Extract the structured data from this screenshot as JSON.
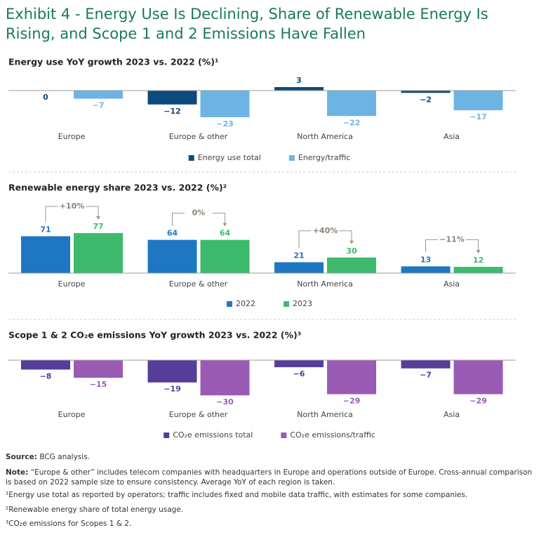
{
  "title": "Exhibit 4 - Energy Use Is Declining, Share of Renewable Energy Is Rising, and Scope 1 and 2 Emissions Have Fallen",
  "chart_data": [
    {
      "type": "bar",
      "title": "Energy use YoY growth 2023 vs. 2022 (%)¹",
      "categories": [
        "Europe",
        "Europe & other",
        "North America",
        "Asia"
      ],
      "series": [
        {
          "name": "Energy use total",
          "color": "#0e4a7b",
          "values": [
            0,
            -12,
            3,
            -2
          ],
          "value_labels": [
            "0",
            "−12",
            "3",
            "−2"
          ]
        },
        {
          "name": "Energy/traffic",
          "color": "#6db4e5",
          "values": [
            -7,
            -23,
            -22,
            -17
          ],
          "value_labels": [
            "−7",
            "−23",
            "−22",
            "−17"
          ]
        }
      ]
    },
    {
      "type": "bar",
      "title": "Renewable energy share 2023 vs. 2022 (%)²",
      "categories": [
        "Europe",
        "Europe & other",
        "North America",
        "Asia"
      ],
      "series": [
        {
          "name": "2022",
          "color": "#1f77c3",
          "values": [
            71,
            64,
            21,
            13
          ]
        },
        {
          "name": "2023",
          "color": "#3dba6e",
          "values": [
            77,
            64,
            30,
            12
          ]
        }
      ],
      "annotations": [
        "+10%",
        "0%",
        "+40%",
        "−11%"
      ]
    },
    {
      "type": "bar",
      "title": "Scope 1 & 2 CO₂e emissions YoY growth 2023 vs. 2022 (%)³",
      "categories": [
        "Europe",
        "Europe & other",
        "North America",
        "Asia"
      ],
      "series": [
        {
          "name": "CO₂e emissions total",
          "color": "#553d9b",
          "values": [
            -8,
            -19,
            -6,
            -7
          ],
          "value_labels": [
            "−8",
            "−19",
            "−6",
            "−7"
          ]
        },
        {
          "name": "CO₂e emissions/traffic",
          "color": "#9a5bb5",
          "values": [
            -15,
            -30,
            -29,
            -29
          ],
          "value_labels": [
            "−15",
            "−30",
            "−29",
            "−29"
          ]
        }
      ]
    }
  ],
  "source": {
    "label": "Source:",
    "text": "BCG analysis."
  },
  "note": {
    "label": "Note:",
    "text": "“Europe & other” includes telecom companies with headquarters in Europe and operations outside of Europe. Cross-annual comparison is based on 2022 sample size to ensure consistency. Average YoY of each region is taken."
  },
  "footnotes": [
    "¹Energy use total as reported by operators; traffic includes fixed and mobile data traffic, with estimates for some companies.",
    "²Renewable energy share of total energy usage.",
    "³CO₂e emissions for Scopes 1 & 2."
  ]
}
